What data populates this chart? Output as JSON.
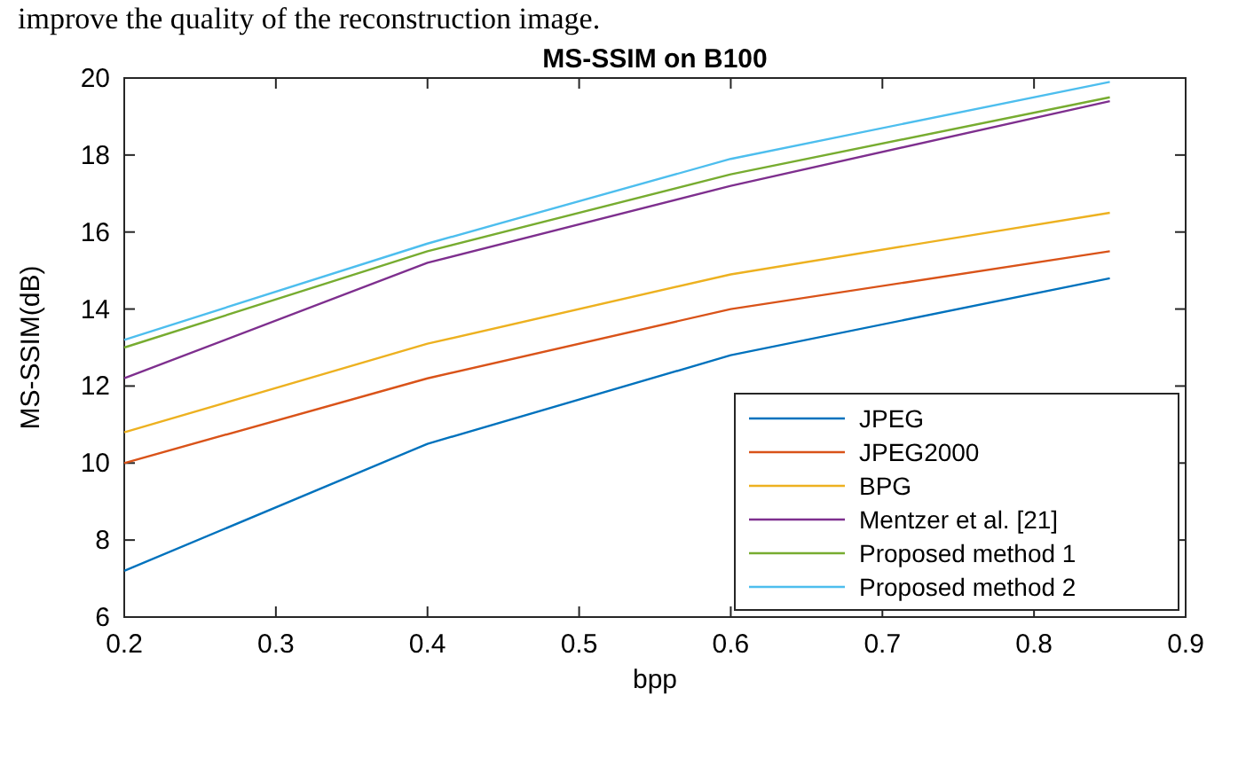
{
  "chart_data": {
    "type": "line",
    "title": "MS-SSIM on B100",
    "xlabel": "bpp",
    "ylabel": "MS-SSIM(dB)",
    "annotations": [
      "improve the quality of the reconstruction image."
    ],
    "x": [
      0.2,
      0.4,
      0.6,
      0.85
    ],
    "xlim": [
      0.2,
      0.9
    ],
    "xticks": [
      0.2,
      0.3,
      0.4,
      0.5,
      0.6,
      0.7,
      0.8,
      0.9
    ],
    "ylim": [
      6,
      20
    ],
    "yticks": [
      6,
      8,
      10,
      12,
      14,
      16,
      18,
      20
    ],
    "grid": false,
    "legend": "bottom right",
    "marker": "none",
    "line_style": "solid",
    "series": [
      {
        "name": "JPEG",
        "color": "#0072bd",
        "values": [
          7.2,
          10.5,
          12.8,
          14.8
        ]
      },
      {
        "name": "JPEG2000",
        "color": "#d95319",
        "values": [
          10.0,
          12.2,
          14.0,
          15.5
        ]
      },
      {
        "name": "BPG",
        "color": "#edb120",
        "values": [
          10.8,
          13.1,
          14.9,
          16.5
        ]
      },
      {
        "name": "Mentzer et al. [21]",
        "color": "#7e2f8e",
        "values": [
          12.2,
          15.2,
          17.2,
          19.4
        ]
      },
      {
        "name": "Proposed method 1",
        "color": "#77ac30",
        "values": [
          13.0,
          15.5,
          17.5,
          19.5
        ]
      },
      {
        "name": "Proposed method 2",
        "color": "#4dbeee",
        "values": [
          13.2,
          15.7,
          17.9,
          19.9
        ]
      }
    ]
  }
}
